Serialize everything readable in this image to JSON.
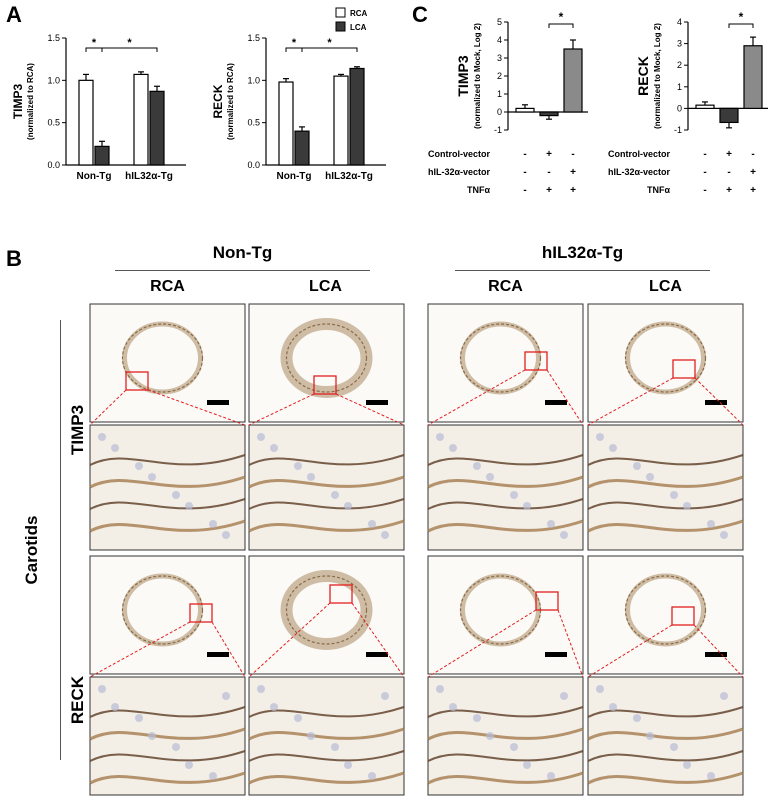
{
  "panels": {
    "a": "A",
    "b": "B",
    "c": "C"
  },
  "chart_data": [
    {
      "type": "bar",
      "id": "A-TIMP3",
      "title": "",
      "ylabel": "TIMP3",
      "ylabel_sub": "(normalized to RCA)",
      "categories": [
        "Non-Tg",
        "hIL32α-Tg"
      ],
      "series": [
        {
          "name": "RCA",
          "color": "#ffffff",
          "values": [
            1.0,
            1.07
          ],
          "errors": [
            0.07,
            0.03
          ]
        },
        {
          "name": "LCA",
          "color": "#3a3a3a",
          "values": [
            0.22,
            0.87
          ],
          "errors": [
            0.06,
            0.06
          ]
        }
      ],
      "ylim": [
        0,
        1.5
      ],
      "yticks": [
        "0.0",
        "0.5",
        "1.0",
        "1.5"
      ],
      "significance": [
        "*",
        "*"
      ]
    },
    {
      "type": "bar",
      "id": "A-RECK",
      "title": "",
      "ylabel": "RECK",
      "ylabel_sub": "(normalized to RCA)",
      "categories": [
        "Non-Tg",
        "hIL32α-Tg"
      ],
      "legend": [
        "RCA",
        "LCA"
      ],
      "series": [
        {
          "name": "RCA",
          "color": "#ffffff",
          "values": [
            0.98,
            1.05
          ],
          "errors": [
            0.04,
            0.02
          ]
        },
        {
          "name": "LCA",
          "color": "#3a3a3a",
          "values": [
            0.4,
            1.14
          ],
          "errors": [
            0.05,
            0.02
          ]
        }
      ],
      "ylim": [
        0,
        1.5
      ],
      "yticks": [
        "0.0",
        "0.5",
        "1.0",
        "1.5"
      ],
      "significance": [
        "*",
        "*"
      ]
    },
    {
      "type": "bar",
      "id": "C-TIMP3",
      "ylabel": "TIMP3",
      "ylabel_sub": "(normalized to Mock, Log 2)",
      "values": [
        0.2,
        -0.2,
        3.5
      ],
      "errors": [
        0.2,
        0.2,
        0.5
      ],
      "colors": [
        "#ffffff",
        "#3a3a3a",
        "#8a8a8a"
      ],
      "ylim": [
        -1,
        5
      ],
      "yticks": [
        "-1",
        "0",
        "1",
        "2",
        "3",
        "4",
        "5"
      ],
      "significance": [
        "*"
      ],
      "conditions": [
        {
          "label": "Control-vector",
          "marks": [
            "-",
            "+",
            "-"
          ]
        },
        {
          "label": "hIL-32α-vector",
          "marks": [
            "-",
            "-",
            "+"
          ]
        },
        {
          "label": "TNFα",
          "marks": [
            "-",
            "+",
            "+"
          ]
        }
      ]
    },
    {
      "type": "bar",
      "id": "C-RECK",
      "ylabel": "RECK",
      "ylabel_sub": "(normalized to Mock, Log 2)",
      "values": [
        0.15,
        -0.65,
        2.9
      ],
      "errors": [
        0.15,
        0.25,
        0.4
      ],
      "colors": [
        "#ffffff",
        "#3a3a3a",
        "#8a8a8a"
      ],
      "ylim": [
        -1,
        4
      ],
      "yticks": [
        "-1",
        "0",
        "1",
        "2",
        "3",
        "4"
      ],
      "significance": [
        "*"
      ],
      "conditions": [
        {
          "label": "Control-vector",
          "marks": [
            "-",
            "+",
            "-"
          ]
        },
        {
          "label": "hIL-32α-vector",
          "marks": [
            "-",
            "-",
            "+"
          ]
        },
        {
          "label": "TNFα",
          "marks": [
            "-",
            "+",
            "+"
          ]
        }
      ]
    }
  ],
  "histology": {
    "group_headers": [
      "Non-Tg",
      "hIL32α-Tg"
    ],
    "columns": [
      "RCA",
      "LCA",
      "RCA",
      "LCA"
    ],
    "tissue_label": "Carotids",
    "row_labels": [
      "TIMP3",
      "RECK"
    ]
  }
}
